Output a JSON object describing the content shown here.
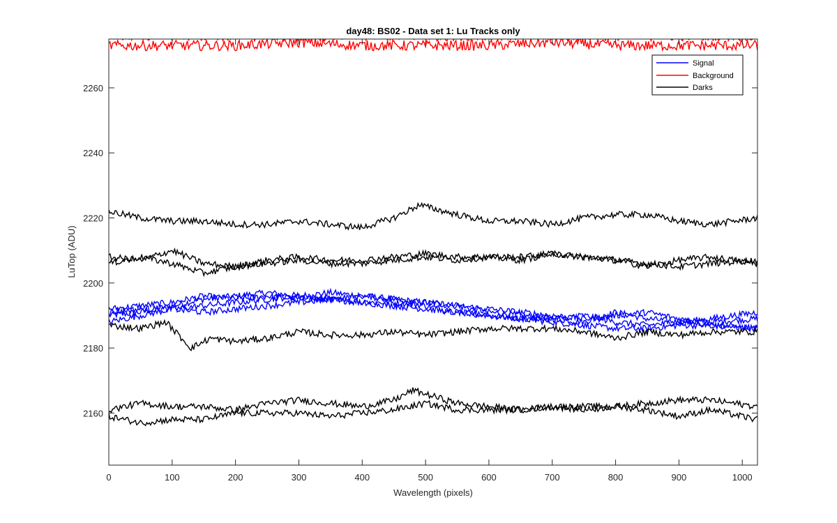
{
  "chart_data": {
    "type": "line",
    "title": "day48: BS02 - Data set 1: Lu Tracks only",
    "xlabel": "Wavelength (pixels)",
    "ylabel": "LuTop (ADU)",
    "xlim": [
      0,
      1024
    ],
    "ylim": [
      2144,
      2275
    ],
    "xticks": [
      0,
      100,
      200,
      300,
      400,
      500,
      600,
      700,
      800,
      900,
      1000
    ],
    "yticks": [
      2160,
      2180,
      2200,
      2220,
      2240,
      2260
    ],
    "grid": false,
    "legend_position": "top-right",
    "legend": [
      {
        "label": "Signal",
        "color": "#0000ff"
      },
      {
        "label": "Background",
        "color": "#ff0000"
      },
      {
        "label": "Darks",
        "color": "#000000"
      }
    ],
    "series": [
      {
        "name": "Signal",
        "color": "#0000ff",
        "x": [
          0,
          50,
          100,
          150,
          200,
          250,
          300,
          350,
          400,
          450,
          500,
          550,
          600,
          650,
          700,
          750,
          800,
          850,
          900,
          950,
          1024
        ],
        "y": [
          2190,
          2191,
          2193,
          2195,
          2196,
          2197,
          2196,
          2197,
          2196,
          2195,
          2194,
          2193,
          2191,
          2190,
          2189,
          2188,
          2191,
          2189,
          2188,
          2188,
          2189
        ]
      },
      {
        "name": "Signal",
        "color": "#0000ff",
        "x": [
          0,
          50,
          100,
          150,
          200,
          250,
          300,
          350,
          400,
          450,
          500,
          550,
          600,
          650,
          700,
          750,
          800,
          850,
          900,
          950,
          1024
        ],
        "y": [
          2192,
          2193,
          2194,
          2196,
          2195,
          2196,
          2195,
          2195,
          2194,
          2194,
          2193,
          2191,
          2190,
          2189,
          2188,
          2187,
          2186,
          2186,
          2187,
          2187,
          2186
        ]
      },
      {
        "name": "Signal",
        "color": "#0000ff",
        "x": [
          0,
          50,
          100,
          150,
          200,
          250,
          300,
          350,
          400,
          450,
          500,
          550,
          600,
          650,
          700,
          750,
          800,
          850,
          900,
          950,
          1024
        ],
        "y": [
          2188,
          2190,
          2192,
          2193,
          2194,
          2195,
          2196,
          2195,
          2194,
          2193,
          2192,
          2191,
          2190,
          2189,
          2189,
          2190,
          2188,
          2187,
          2188,
          2189,
          2191
        ]
      },
      {
        "name": "Signal",
        "color": "#0000ff",
        "x": [
          0,
          50,
          100,
          150,
          200,
          250,
          300,
          350,
          400,
          450,
          500,
          550,
          600,
          650,
          700,
          750,
          800,
          850,
          900,
          950,
          1024
        ],
        "y": [
          2191,
          2192,
          2192,
          2191,
          2192,
          2193,
          2194,
          2195,
          2196,
          2195,
          2194,
          2193,
          2192,
          2191,
          2190,
          2189,
          2190,
          2191,
          2189,
          2187,
          2186
        ]
      },
      {
        "name": "Background",
        "color": "#ff0000",
        "x": [
          0,
          100,
          200,
          300,
          400,
          500,
          600,
          700,
          800,
          900,
          1024
        ],
        "y": [
          2273,
          2273,
          2273,
          2274,
          2273,
          2273,
          2273,
          2274,
          2273,
          2273,
          2273
        ]
      },
      {
        "name": "Background",
        "color": "#ff0000",
        "x": [
          0,
          100,
          200,
          300,
          400,
          500,
          600,
          700,
          800,
          900,
          1024
        ],
        "y": [
          2276,
          2276,
          2276,
          2276,
          2276,
          2276,
          2276,
          2276,
          2276,
          2276,
          2276
        ]
      },
      {
        "name": "Darks",
        "color": "#000000",
        "x": [
          0,
          50,
          100,
          150,
          200,
          250,
          300,
          350,
          400,
          450,
          490,
          550,
          600,
          650,
          700,
          750,
          800,
          850,
          900,
          950,
          1024
        ],
        "y": [
          2222,
          2220,
          2219,
          2219,
          2218,
          2218,
          2219,
          2218,
          2217,
          2220,
          2224,
          2221,
          2219,
          2219,
          2218,
          2220,
          2221,
          2221,
          2219,
          2218,
          2220
        ]
      },
      {
        "name": "Darks",
        "color": "#000000",
        "x": [
          0,
          50,
          100,
          150,
          200,
          250,
          300,
          350,
          400,
          450,
          500,
          550,
          600,
          650,
          700,
          750,
          800,
          850,
          900,
          950,
          1024
        ],
        "y": [
          2208,
          2207,
          2210,
          2206,
          2205,
          2206,
          2207,
          2206,
          2206,
          2207,
          2208,
          2207,
          2208,
          2207,
          2209,
          2208,
          2207,
          2206,
          2205,
          2206,
          2207
        ]
      },
      {
        "name": "Darks",
        "color": "#000000",
        "x": [
          0,
          50,
          100,
          150,
          200,
          250,
          300,
          350,
          400,
          450,
          500,
          550,
          600,
          650,
          700,
          750,
          800,
          850,
          900,
          950,
          1024
        ],
        "y": [
          2206,
          2208,
          2206,
          2203,
          2205,
          2207,
          2208,
          2207,
          2207,
          2208,
          2209,
          2208,
          2208,
          2208,
          2209,
          2208,
          2207,
          2205,
          2207,
          2208,
          2206
        ]
      },
      {
        "name": "Darks",
        "color": "#000000",
        "x": [
          0,
          50,
          90,
          130,
          160,
          200,
          250,
          300,
          350,
          400,
          450,
          500,
          550,
          600,
          650,
          700,
          750,
          800,
          850,
          900,
          950,
          1024
        ],
        "y": [
          2187,
          2186,
          2188,
          2180,
          2183,
          2182,
          2183,
          2185,
          2184,
          2184,
          2185,
          2184,
          2185,
          2186,
          2186,
          2186,
          2185,
          2183,
          2185,
          2184,
          2185,
          2185
        ]
      },
      {
        "name": "Darks",
        "color": "#000000",
        "x": [
          0,
          50,
          100,
          150,
          200,
          250,
          300,
          350,
          400,
          450,
          480,
          550,
          600,
          650,
          700,
          750,
          800,
          850,
          900,
          950,
          1024
        ],
        "y": [
          2161,
          2163,
          2162,
          2162,
          2161,
          2163,
          2164,
          2163,
          2162,
          2164,
          2167,
          2163,
          2162,
          2161,
          2162,
          2161,
          2162,
          2163,
          2164,
          2164,
          2162
        ]
      },
      {
        "name": "Darks",
        "color": "#000000",
        "x": [
          0,
          50,
          100,
          150,
          200,
          250,
          300,
          350,
          400,
          450,
          500,
          550,
          600,
          650,
          700,
          750,
          800,
          850,
          900,
          950,
          1024
        ],
        "y": [
          2159,
          2157,
          2158,
          2158,
          2160,
          2160,
          2160,
          2159,
          2160,
          2161,
          2163,
          2161,
          2161,
          2161,
          2162,
          2162,
          2162,
          2161,
          2159,
          2161,
          2158
        ]
      }
    ]
  }
}
